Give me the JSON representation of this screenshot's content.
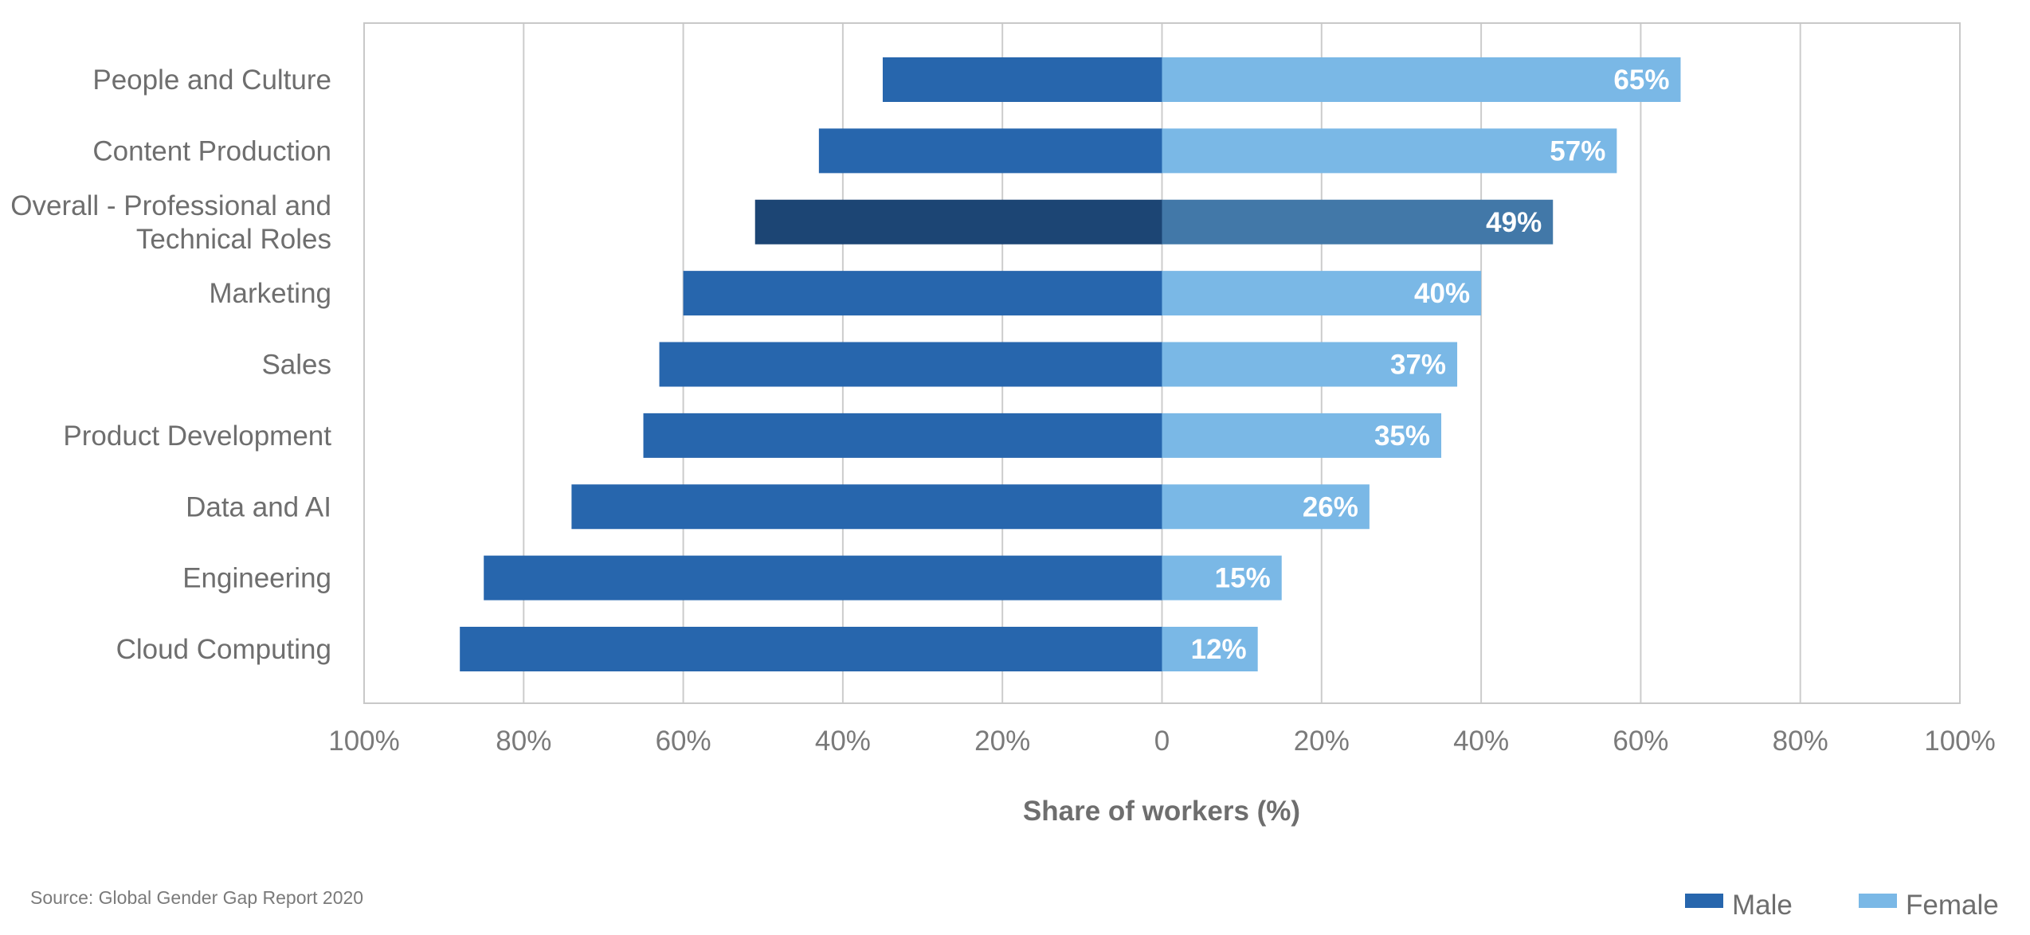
{
  "chart_data": {
    "type": "bar",
    "orientation": "horizontal",
    "layout": "diverging",
    "categories": [
      "People and Culture",
      "Content Production",
      "Overall - Professional and Technical Roles",
      "Marketing",
      "Sales",
      "Product Development",
      "Data and AI",
      "Engineering",
      "Cloud Computing"
    ],
    "series": [
      {
        "name": "Male",
        "color": "#2766ad",
        "values": [
          35,
          43,
          51,
          60,
          63,
          65,
          74,
          85,
          88
        ]
      },
      {
        "name": "Female",
        "color": "#7ab8e6",
        "values": [
          65,
          57,
          49,
          40,
          37,
          35,
          26,
          15,
          12
        ]
      }
    ],
    "highlight": {
      "category_index": 2,
      "male_color": "#1c4574",
      "female_color": "#4278a8"
    },
    "data_labels": [
      "65%",
      "57%",
      "49%",
      "40%",
      "37%",
      "35%",
      "26%",
      "15%",
      "12%"
    ],
    "x_ticks": [
      -100,
      -80,
      -60,
      -40,
      -20,
      0,
      20,
      40,
      60,
      80,
      100
    ],
    "x_tick_labels": [
      "100%",
      "80%",
      "60%",
      "40%",
      "20%",
      "0",
      "20%",
      "40%",
      "60%",
      "80%",
      "100%"
    ],
    "xlim": [
      -100,
      100
    ],
    "xlabel": "Share of workers (%)",
    "title": "",
    "grid": true,
    "legend": {
      "position": "bottom-right",
      "entries": [
        "Male",
        "Female"
      ]
    },
    "source": "Source: Global Gender Gap Report 2020"
  }
}
